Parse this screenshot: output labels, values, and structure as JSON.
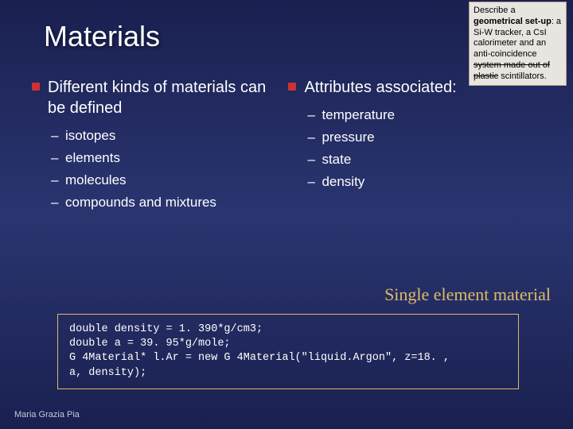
{
  "title": "Materials",
  "callout": {
    "prefix": "Describe a ",
    "bold1": "geometrical set-up",
    "mid": ": a Si-W tracker, a CsI calorimeter and an anti-coincidence ",
    "strike": "system made out of plastic",
    "suffix": " scintillators."
  },
  "left": {
    "heading": "Different kinds of materials can be defined",
    "items": [
      "isotopes",
      "elements",
      "molecules",
      "compounds and mixtures"
    ]
  },
  "right": {
    "heading": "Attributes associated:",
    "items": [
      "temperature",
      "pressure",
      "state",
      "density"
    ]
  },
  "section_label": "Single element material",
  "code": {
    "l1": "double density = 1. 390*g/cm3;",
    "l2": "double a = 39. 95*g/mole;",
    "l3": "G 4Material* l.Ar = new G 4Material(\"liquid.Argon\", z=18. ,",
    "l4": "a, density);"
  },
  "footer": "Maria Grazia Pia"
}
